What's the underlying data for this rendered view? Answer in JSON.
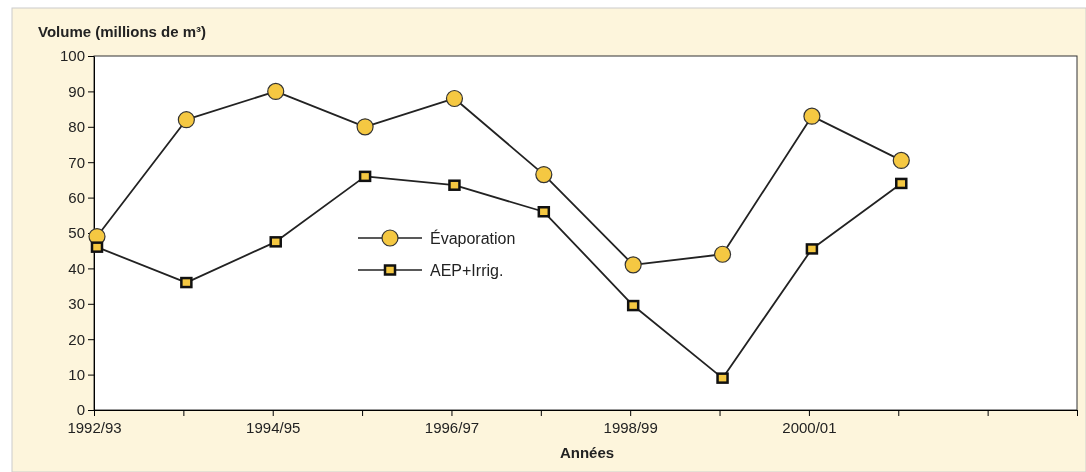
{
  "chart_data": {
    "type": "line",
    "ylabel": "Volume (millions de m³)",
    "xlabel": "Années",
    "categories": [
      "1992/93",
      null,
      "1994/95",
      null,
      "1996/97",
      null,
      "1998/99",
      null,
      "2000/01",
      null,
      null
    ],
    "series": [
      {
        "name": "Évaporation",
        "color": "#f5c842",
        "marker": "circle",
        "values": [
          49,
          82,
          90,
          80,
          88,
          66.5,
          41,
          44,
          83,
          70.5,
          null
        ]
      },
      {
        "name": "AEP+Irrig.",
        "color": "#f5c842",
        "marker": "square",
        "values": [
          46,
          36,
          47.5,
          66,
          63.5,
          56,
          29.5,
          9,
          45.5,
          64,
          null
        ]
      }
    ],
    "ylim": [
      0,
      100
    ],
    "yticks": [
      0,
      10,
      20,
      30,
      40,
      50,
      60,
      70,
      80,
      90,
      100
    ],
    "grid": false,
    "legend": "center",
    "line_style": "solid"
  }
}
